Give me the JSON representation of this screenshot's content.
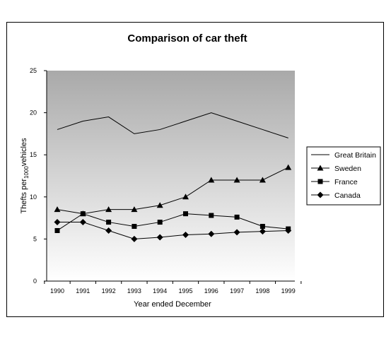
{
  "chart_data": {
    "type": "line",
    "title": "Comparison of car theft",
    "xlabel": "Year ended December",
    "ylabel_main": "Thefts per",
    "ylabel_sub": "1000",
    "ylabel_tail": "vehicles",
    "x": [
      "1990",
      "1991",
      "1992",
      "1993",
      "1994",
      "1995",
      "1996",
      "1997",
      "1998",
      "1999"
    ],
    "ylim": [
      0,
      25
    ],
    "yticks": [
      "0",
      "5",
      "10",
      "15",
      "20",
      "25"
    ],
    "legend_position": "right",
    "plot_background": "gradient-grey",
    "series": [
      {
        "name": "Great Britain",
        "marker": "none",
        "values": [
          18,
          19,
          19.5,
          17.5,
          18,
          19,
          20,
          19,
          18,
          17
        ]
      },
      {
        "name": "Sweden",
        "marker": "triangle",
        "values": [
          8.5,
          8,
          8.5,
          8.5,
          9,
          10,
          12,
          12,
          12,
          13.5
        ]
      },
      {
        "name": "France",
        "marker": "square",
        "values": [
          6,
          8,
          7,
          6.5,
          7,
          8,
          7.8,
          7.6,
          6.5,
          6.2
        ]
      },
      {
        "name": "Canada",
        "marker": "diamond",
        "values": [
          7,
          7,
          6,
          5,
          5.2,
          5.5,
          5.6,
          5.8,
          5.9,
          6
        ]
      }
    ]
  }
}
